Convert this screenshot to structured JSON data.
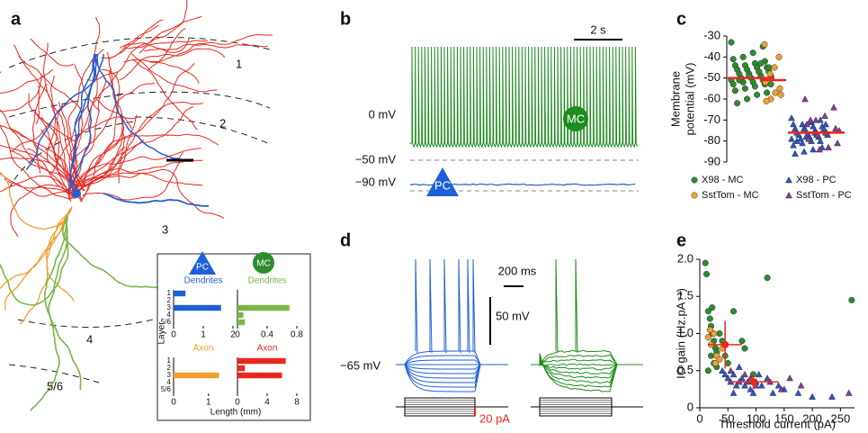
{
  "panel_labels": [
    "a",
    "b",
    "c",
    "d",
    "e"
  ],
  "panel_a": {
    "layers": [
      "1",
      "2",
      "3",
      "4",
      "5/6"
    ],
    "cells": [
      "PC",
      "MC"
    ],
    "inset_ylabel": "Layer",
    "inset_xlabel": "Length (mm)"
  },
  "panel_b": {
    "time_scale": "2 s",
    "levels": [
      "0 mV",
      "−50 mV",
      "−90 mV"
    ],
    "cells": [
      "MC",
      "PC"
    ]
  },
  "panel_d": {
    "time_scale": "200 ms",
    "voltage_scale": "50 mV",
    "rest": "−65 mV",
    "current": "20 pA"
  },
  "chart_data": [
    {
      "type": "hbar",
      "title": "Dendrites",
      "color": "#1f5fd6",
      "categories": [
        "1",
        "2",
        "3",
        "4",
        "5/6"
      ],
      "values": [
        0.4,
        0,
        1.6,
        0,
        0
      ],
      "xlim": [
        0,
        2
      ],
      "xticks": [
        0,
        1,
        2
      ]
    },
    {
      "type": "hbar",
      "title": "Dendrites",
      "color": "#7ab648",
      "categories": [
        null,
        null,
        null,
        null,
        null
      ],
      "values": [
        0,
        0,
        0.7,
        0.08,
        0.1
      ],
      "xlim": [
        0,
        0.8
      ],
      "xticks": [
        0,
        0.4,
        0.8
      ]
    },
    {
      "type": "hbar",
      "title": "Axon",
      "color": "#f0a030",
      "categories": [
        "1",
        "2",
        "3",
        "4",
        "5/6"
      ],
      "values": [
        0,
        0,
        1.3,
        0,
        0
      ],
      "xlim": [
        0,
        1.7
      ],
      "xticks": [
        0,
        1
      ]
    },
    {
      "type": "hbar",
      "title": "Axon",
      "color": "#e8281e",
      "categories": [
        null,
        null,
        null,
        null,
        null
      ],
      "values": [
        6.5,
        1,
        6,
        0,
        0
      ],
      "xlim": [
        0,
        8
      ],
      "xticks": [
        0,
        4,
        8
      ]
    },
    {
      "type": "strip",
      "ylabel": [
        "Membrane",
        "potential (mV)"
      ],
      "ylim": [
        -90,
        -30
      ],
      "yticks": [
        -90,
        -80,
        -70,
        -60,
        -50,
        -40,
        -30
      ],
      "median_color": "#e8281e",
      "series": [
        {
          "name": "X98 - MC",
          "color": "#2e8b2e",
          "marker": "circle",
          "median": -50,
          "values": [
            -33,
            -35,
            -38,
            -40,
            -41,
            -42,
            -43,
            -44,
            -44,
            -45,
            -45,
            -46,
            -46,
            -47,
            -47,
            -48,
            -48,
            -49,
            -49,
            -50,
            -50,
            -51,
            -51,
            -52,
            -52,
            -53,
            -53,
            -54,
            -55,
            -56,
            -57,
            -58,
            -60,
            -62,
            -45,
            -47,
            -49,
            -51,
            -53,
            -43
          ]
        },
        {
          "name": "SstTom - MC",
          "color": "#f0a030",
          "marker": "circle",
          "median": -51,
          "values": [
            -34,
            -40,
            -45,
            -48,
            -52,
            -55,
            -57,
            -60,
            -61,
            -58
          ]
        },
        {
          "name": "X98 - PC",
          "color": "#2a56c6",
          "marker": "triangle",
          "median": -76,
          "values": [
            -69,
            -70,
            -71,
            -72,
            -72,
            -73,
            -73,
            -74,
            -74,
            -75,
            -75,
            -75,
            -76,
            -76,
            -76,
            -77,
            -77,
            -77,
            -78,
            -78,
            -79,
            -79,
            -80,
            -80,
            -81,
            -82,
            -83,
            -84,
            -85,
            -86,
            -74,
            -76,
            -78,
            -80,
            -72,
            -77
          ]
        },
        {
          "name": "SstTom - PC",
          "color": "#8a3a9a",
          "marker": "triangle",
          "median": -76,
          "values": [
            -60,
            -64,
            -68,
            -70,
            -72,
            -74,
            -76,
            -77,
            -79,
            -81,
            -83,
            -84,
            -70,
            -75
          ]
        }
      ]
    },
    {
      "type": "scatter",
      "xlabel": "Threshold current (pA)",
      "ylabel": "IO gain (Hz.pA⁻¹)",
      "xlim": [
        0,
        275
      ],
      "xticks": [
        0,
        50,
        100,
        150,
        200,
        250
      ],
      "ylim": [
        0,
        2
      ],
      "yticks": [
        0,
        0.5,
        {
          "value": 1,
          "label": "1.0"
        },
        1.5,
        {
          "value": 2,
          "label": "2.0"
        }
      ],
      "series": [
        {
          "color": "#2e8b2e",
          "marker": "circle",
          "x": [
            10,
            12,
            15,
            18,
            20,
            22,
            25,
            28,
            30,
            20,
            25,
            35,
            40,
            45,
            60,
            75,
            80,
            120,
            270,
            15,
            30,
            50,
            95,
            22
          ],
          "values": [
            1.95,
            1.8,
            1.3,
            1.2,
            1.1,
            1.0,
            0.9,
            0.8,
            0.75,
            0.7,
            0.6,
            1.0,
            0.9,
            0.7,
            1.3,
            0.9,
            0.8,
            1.75,
            1.45,
            0.5,
            0.55,
            0.6,
            0.45,
            1.35
          ]
        },
        {
          "color": "#f0a030",
          "marker": "circle",
          "x": [
            15,
            20,
            25,
            30,
            35,
            18,
            40,
            28
          ],
          "values": [
            0.95,
            0.85,
            1.0,
            0.7,
            0.65,
            1.05,
            0.8,
            0.6
          ]
        },
        {
          "color": "#2a56c6",
          "marker": "triangle",
          "x": [
            40,
            50,
            55,
            60,
            65,
            70,
            75,
            80,
            85,
            90,
            95,
            100,
            110,
            120,
            130,
            140,
            150,
            175,
            200,
            235,
            60,
            45,
            105
          ],
          "values": [
            0.5,
            0.4,
            0.35,
            0.45,
            0.3,
            0.55,
            0.4,
            0.3,
            0.35,
            0.25,
            0.2,
            0.35,
            0.3,
            0.4,
            0.2,
            0.3,
            0.25,
            0.2,
            0.15,
            0.15,
            0.2,
            0.45,
            0.45
          ]
        },
        {
          "color": "#8a3a9a",
          "marker": "triangle",
          "x": [
            55,
            70,
            90,
            100,
            125,
            145,
            160,
            180,
            265,
            80
          ],
          "values": [
            0.5,
            0.35,
            0.4,
            0.3,
            0.35,
            0.25,
            0.4,
            0.3,
            0.2,
            0.45
          ]
        }
      ],
      "summary": {
        "color": "#e8281e",
        "points": [
          {
            "x": 45,
            "y": 0.85,
            "xerr": 30,
            "yerr": 0.32
          },
          {
            "x": 95,
            "y": 0.35,
            "xerr": 45,
            "yerr": 0.1
          }
        ]
      }
    }
  ]
}
